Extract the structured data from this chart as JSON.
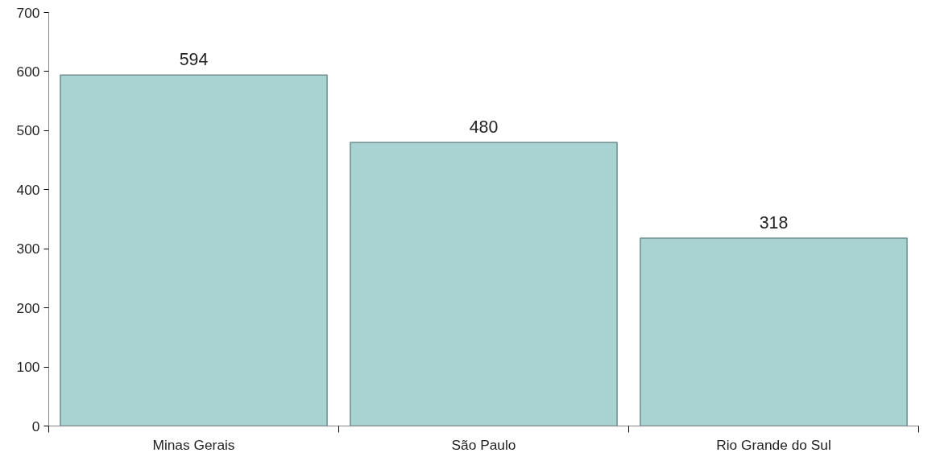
{
  "chart_data": {
    "type": "bar",
    "categories": [
      "Minas Gerais",
      "São Paulo",
      "Rio Grande do Sul"
    ],
    "values": [
      594,
      480,
      318
    ],
    "color": "#a9d3d3",
    "ylim": [
      0,
      700
    ],
    "yticks": [
      0,
      100,
      200,
      300,
      400,
      500,
      600,
      700
    ],
    "grid": false,
    "data_labels": true
  }
}
